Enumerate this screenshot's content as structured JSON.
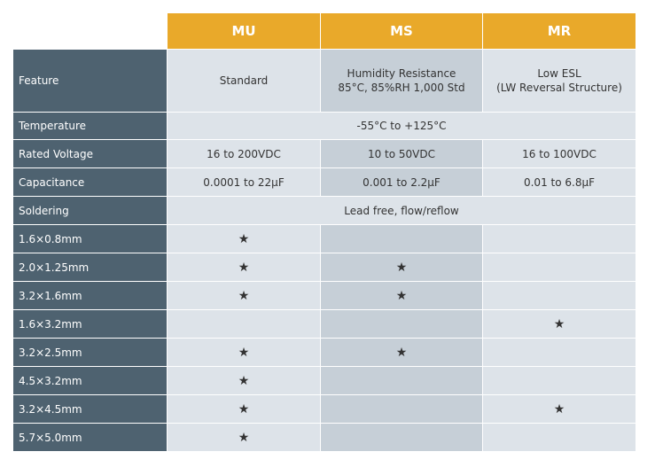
{
  "header": {
    "columns": [
      "MU",
      "MS",
      "MR"
    ]
  },
  "table": {
    "rows": [
      {
        "label": "Feature",
        "cells": [
          "Standard",
          "Humidity Resistance\n85°C, 85%RH 1,000 Std",
          "Low ESL\n(LW Reversal Structure)"
        ]
      },
      {
        "label": "Temperature",
        "cells": [
          "-55°C to +125°C"
        ]
      },
      {
        "label": "Rated Voltage",
        "cells": [
          "16 to 200VDC",
          "10 to 50VDC",
          "16 to 100VDC"
        ]
      },
      {
        "label": "Capacitance",
        "cells": [
          "0.0001 to 22µF",
          "0.001 to 2.2µF",
          "0.01 to 6.8µF"
        ]
      },
      {
        "label": "Soldering",
        "cells": [
          "Lead free, flow/reflow"
        ]
      },
      {
        "label": "1.6×0.8mm",
        "cells": [
          "★",
          null,
          null
        ]
      },
      {
        "label": "2.0×1.25mm",
        "cells": [
          "★",
          "★",
          null
        ]
      },
      {
        "label": "3.2×1.6mm",
        "cells": [
          "★",
          "★",
          null
        ]
      },
      {
        "label": "1.6×3.2mm",
        "cells": [
          null,
          null,
          "★"
        ]
      },
      {
        "label": "3.2×2.5mm",
        "cells": [
          "★",
          "★",
          null
        ]
      },
      {
        "label": "4.5×3.2mm",
        "cells": [
          "★",
          null,
          null
        ]
      },
      {
        "label": "3.2×4.5mm",
        "cells": [
          "★",
          null,
          "★"
        ]
      },
      {
        "label": "5.7×5.0mm",
        "cells": [
          "★",
          null,
          null
        ]
      }
    ]
  }
}
